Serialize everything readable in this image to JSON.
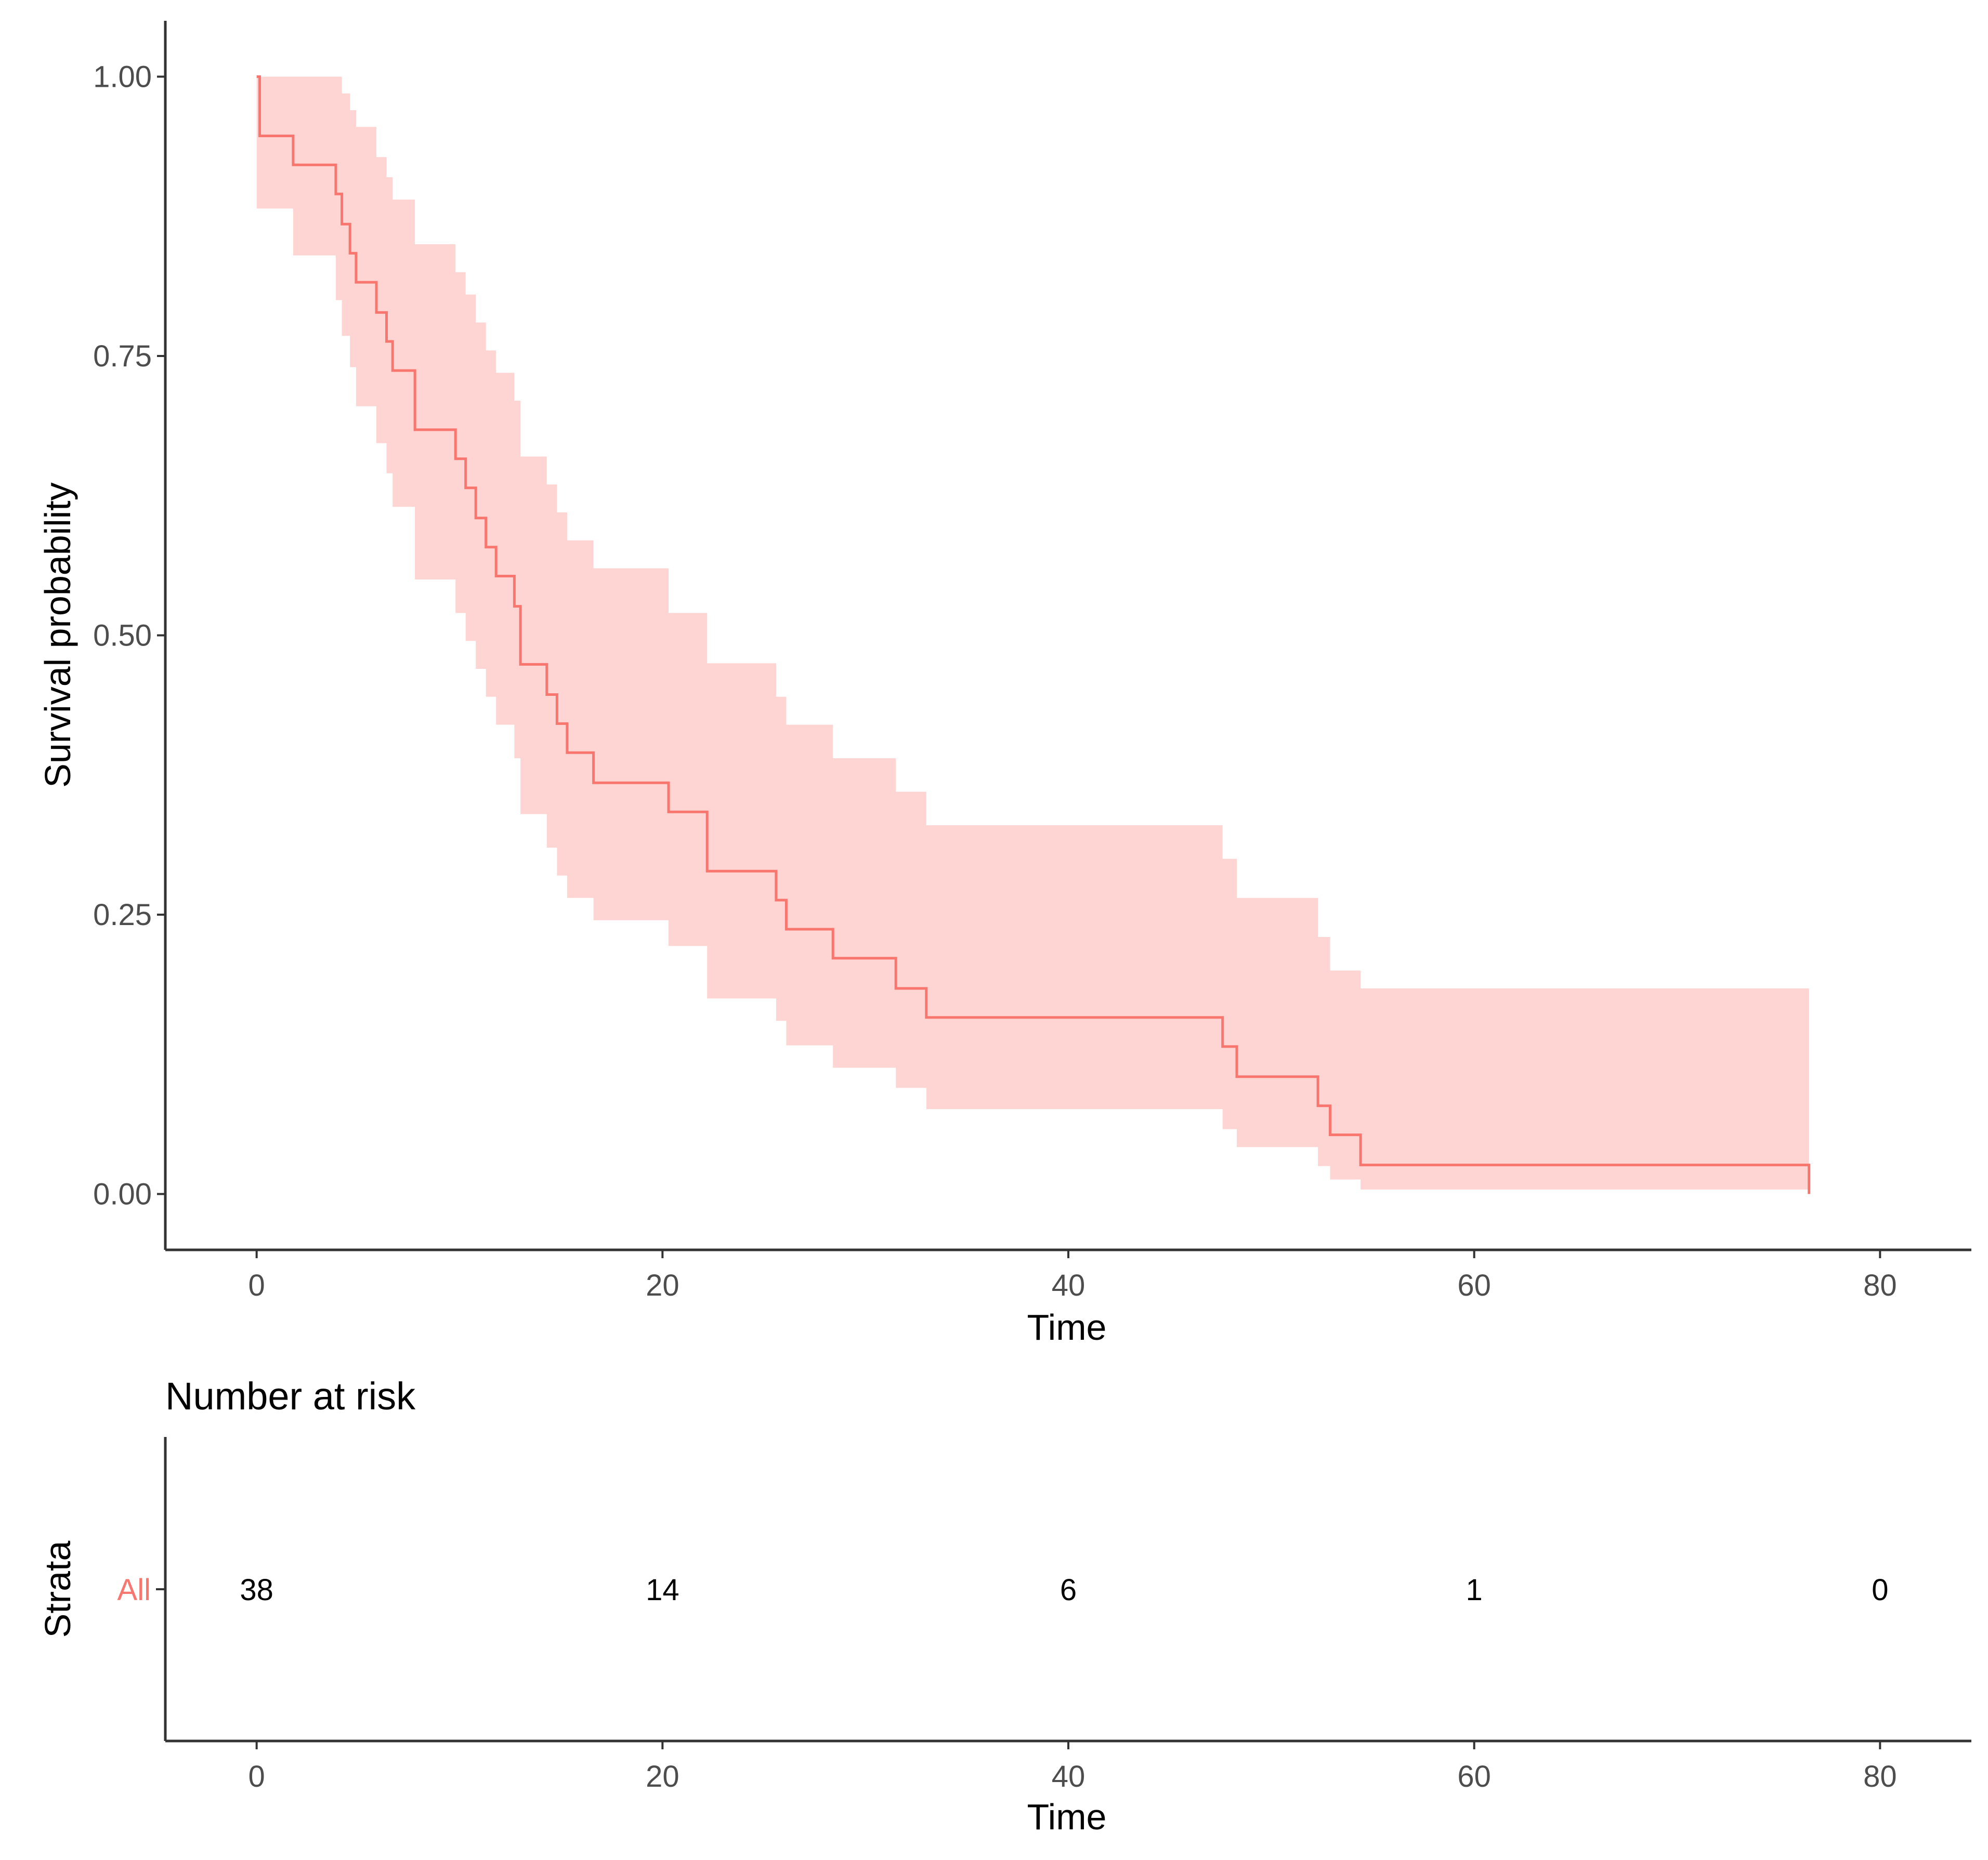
{
  "chart_data": [
    {
      "type": "line",
      "subtype": "kaplan-meier-step",
      "ylabel": "Survival probability",
      "xlabel": "Time",
      "xlim": [
        -4.5,
        84.5
      ],
      "ylim": [
        -0.05,
        1.05
      ],
      "xticks": [
        0,
        20,
        40,
        60,
        80
      ],
      "xtick_labels": [
        "0",
        "20",
        "40",
        "60",
        "80"
      ],
      "yticks": [
        0,
        0.25,
        0.5,
        0.75,
        1
      ],
      "ytick_labels": [
        "0.00",
        "0.25",
        "0.50",
        "0.75",
        "1.00"
      ],
      "grid": false,
      "legend": "none",
      "series": [
        {
          "name": "All",
          "color": "#f8766d",
          "fill": "#ffd5d4",
          "steps": [
            {
              "t": 0.0,
              "s": 1.0,
              "lo": 0.882,
              "hi": 1.0
            },
            {
              "t": 0.15,
              "s": 0.947,
              "lo": 0.882,
              "hi": 1.0
            },
            {
              "t": 1.8,
              "s": 0.921,
              "lo": 0.84,
              "hi": 1.0
            },
            {
              "t": 3.9,
              "s": 0.895,
              "lo": 0.8,
              "hi": 1.0
            },
            {
              "t": 4.2,
              "s": 0.868,
              "lo": 0.768,
              "hi": 0.985
            },
            {
              "t": 4.6,
              "s": 0.842,
              "lo": 0.74,
              "hi": 0.97
            },
            {
              "t": 4.9,
              "s": 0.816,
              "lo": 0.705,
              "hi": 0.955
            },
            {
              "t": 5.9,
              "s": 0.789,
              "lo": 0.672,
              "hi": 0.928
            },
            {
              "t": 6.4,
              "s": 0.763,
              "lo": 0.645,
              "hi": 0.91
            },
            {
              "t": 6.7,
              "s": 0.737,
              "lo": 0.615,
              "hi": 0.89
            },
            {
              "t": 7.8,
              "s": 0.684,
              "lo": 0.55,
              "hi": 0.85
            },
            {
              "t": 9.8,
              "s": 0.658,
              "lo": 0.52,
              "hi": 0.825
            },
            {
              "t": 10.3,
              "s": 0.632,
              "lo": 0.495,
              "hi": 0.805
            },
            {
              "t": 10.8,
              "s": 0.605,
              "lo": 0.47,
              "hi": 0.78
            },
            {
              "t": 11.3,
              "s": 0.579,
              "lo": 0.445,
              "hi": 0.755
            },
            {
              "t": 11.8,
              "s": 0.553,
              "lo": 0.42,
              "hi": 0.735
            },
            {
              "t": 12.7,
              "s": 0.526,
              "lo": 0.39,
              "hi": 0.71
            },
            {
              "t": 13.0,
              "s": 0.474,
              "lo": 0.34,
              "hi": 0.66
            },
            {
              "t": 14.3,
              "s": 0.447,
              "lo": 0.31,
              "hi": 0.635
            },
            {
              "t": 14.8,
              "s": 0.421,
              "lo": 0.285,
              "hi": 0.61
            },
            {
              "t": 15.3,
              "s": 0.395,
              "lo": 0.265,
              "hi": 0.585
            },
            {
              "t": 16.6,
              "s": 0.368,
              "lo": 0.245,
              "hi": 0.56
            },
            {
              "t": 20.3,
              "s": 0.342,
              "lo": 0.222,
              "hi": 0.52
            },
            {
              "t": 22.2,
              "s": 0.289,
              "lo": 0.175,
              "hi": 0.475
            },
            {
              "t": 25.6,
              "s": 0.263,
              "lo": 0.155,
              "hi": 0.445
            },
            {
              "t": 26.1,
              "s": 0.237,
              "lo": 0.133,
              "hi": 0.42
            },
            {
              "t": 28.4,
              "s": 0.211,
              "lo": 0.113,
              "hi": 0.39
            },
            {
              "t": 31.5,
              "s": 0.184,
              "lo": 0.095,
              "hi": 0.36
            },
            {
              "t": 33.0,
              "s": 0.158,
              "lo": 0.076,
              "hi": 0.33
            },
            {
              "t": 47.6,
              "s": 0.132,
              "lo": 0.058,
              "hi": 0.3
            },
            {
              "t": 48.3,
              "s": 0.105,
              "lo": 0.042,
              "hi": 0.265
            },
            {
              "t": 52.3,
              "s": 0.079,
              "lo": 0.025,
              "hi": 0.23
            },
            {
              "t": 52.9,
              "s": 0.053,
              "lo": 0.013,
              "hi": 0.2
            },
            {
              "t": 54.4,
              "s": 0.026,
              "lo": 0.004,
              "hi": 0.184
            },
            {
              "t": 76.5,
              "s": 0.0,
              "lo": 0.004,
              "hi": 0.184
            }
          ]
        }
      ]
    },
    {
      "type": "table",
      "title": "Number at risk",
      "ylabel": "Strata",
      "xlabel": "Time",
      "xlim": [
        -4.5,
        84.5
      ],
      "xticks": [
        0,
        20,
        40,
        60,
        80
      ],
      "xtick_labels": [
        "0",
        "20",
        "40",
        "60",
        "80"
      ],
      "rows": [
        {
          "strata": "All",
          "color": "#f8766d",
          "times": [
            0,
            20,
            40,
            60,
            80
          ],
          "counts": [
            "38",
            "14",
            "6",
            "1",
            "0"
          ]
        }
      ]
    }
  ]
}
